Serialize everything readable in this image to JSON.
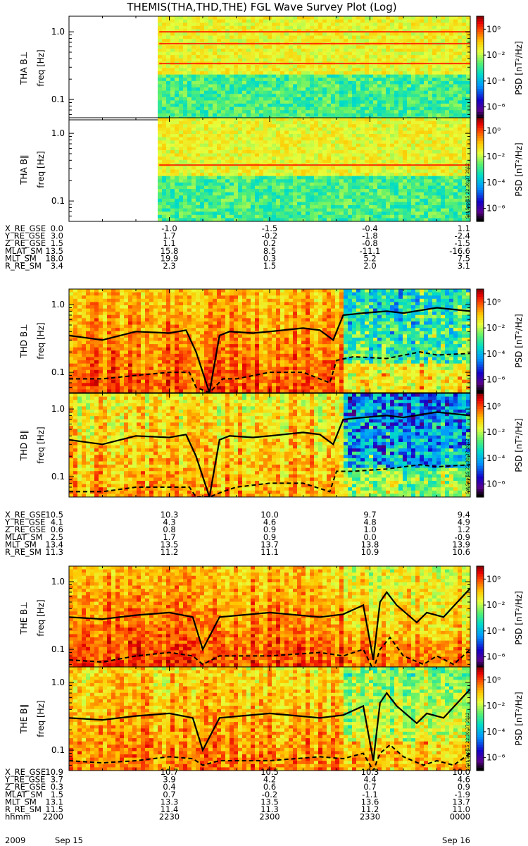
{
  "title": "THEMIS(THA,THD,THE) FGL Wave Survey Plot (Log)",
  "stamp": "Sat Sep 15 22:30:37 2012",
  "colors": {
    "upper_line": "#000000",
    "lower_line": "#000000",
    "harmonic": "#ff3000"
  },
  "chart_data": [
    {
      "type": "heatmap",
      "probe": "THA",
      "panel": "THA B⊥",
      "ylabel": "freq [Hz]",
      "yscale": "log",
      "ylim": [
        0.05,
        1.7
      ],
      "yticks": [
        "1.0",
        "0.1"
      ],
      "data_start_min": 27,
      "gap": "no data before 2215",
      "harmonic_lines_hz": [
        1.0,
        0.67,
        0.34
      ],
      "colorbar": {
        "label": "PSD [nT²/Hz]",
        "ticks": [
          "10⁰",
          "10⁻²",
          "10⁻⁴",
          "10⁻⁶"
        ],
        "range": [
          1e-07,
          10.0
        ]
      }
    },
    {
      "type": "heatmap",
      "probe": "THA",
      "panel": "THA B∥",
      "ylabel": "freq [Hz]",
      "yscale": "log",
      "ylim": [
        0.05,
        1.7
      ],
      "yticks": [
        "1.0",
        "0.1"
      ],
      "data_start_min": 27,
      "harmonic_lines_hz": [
        0.34
      ],
      "colorbar": {
        "label": "PSD [nT²/Hz]",
        "ticks": [
          "10⁰",
          "10⁻²",
          "10⁻⁴",
          "10⁻⁶"
        ],
        "range": [
          1e-07,
          10.0
        ]
      }
    },
    {
      "type": "heatmap",
      "probe": "THD",
      "panel": "THD B⊥",
      "ylabel": "freq [Hz]",
      "yscale": "log",
      "ylim": [
        0.05,
        1.7
      ],
      "yticks": [
        "1.0",
        "0.1"
      ],
      "upper_line": {
        "x_min": [
          0,
          10,
          20,
          30,
          35,
          38,
          42,
          45,
          48,
          55,
          60,
          70,
          75,
          79,
          82,
          88,
          95,
          100,
          110,
          120
        ],
        "y_hz": [
          0.35,
          0.3,
          0.4,
          0.38,
          0.42,
          0.2,
          0.05,
          0.35,
          0.4,
          0.38,
          0.4,
          0.45,
          0.42,
          0.3,
          0.7,
          0.75,
          0.8,
          0.75,
          0.9,
          0.8
        ]
      },
      "lower_line": {
        "x_min": [
          0,
          10,
          20,
          30,
          36,
          38,
          42,
          46,
          50,
          60,
          70,
          78,
          80,
          85,
          95,
          105,
          110,
          120
        ],
        "y_hz": [
          0.08,
          0.08,
          0.09,
          0.1,
          0.1,
          0.06,
          0.05,
          0.08,
          0.08,
          0.1,
          0.1,
          0.07,
          0.15,
          0.17,
          0.16,
          0.2,
          0.18,
          0.19
        ]
      },
      "colorbar": {
        "label": "PSD [nT²/Hz]",
        "ticks": [
          "10⁰",
          "10⁻²",
          "10⁻⁴",
          "10⁻⁶"
        ],
        "range": [
          1e-07,
          10.0
        ]
      }
    },
    {
      "type": "heatmap",
      "probe": "THD",
      "panel": "THD B∥",
      "ylabel": "freq [Hz]",
      "yscale": "log",
      "ylim": [
        0.05,
        1.7
      ],
      "yticks": [
        "1.0",
        "0.1"
      ],
      "upper_line": {
        "x_min": [
          0,
          10,
          20,
          30,
          35,
          38,
          42,
          45,
          48,
          55,
          60,
          70,
          75,
          79,
          82,
          88,
          95,
          100,
          110,
          120
        ],
        "y_hz": [
          0.35,
          0.3,
          0.4,
          0.38,
          0.42,
          0.2,
          0.05,
          0.35,
          0.4,
          0.38,
          0.4,
          0.45,
          0.42,
          0.3,
          0.7,
          0.75,
          0.8,
          0.75,
          0.9,
          0.8
        ]
      },
      "lower_line": {
        "x_min": [
          0,
          10,
          20,
          30,
          36,
          38,
          42,
          46,
          50,
          60,
          70,
          78,
          80,
          85,
          95,
          105,
          110,
          120
        ],
        "y_hz": [
          0.06,
          0.06,
          0.07,
          0.07,
          0.07,
          0.05,
          0.05,
          0.06,
          0.07,
          0.08,
          0.08,
          0.06,
          0.12,
          0.12,
          0.13,
          0.15,
          0.14,
          0.15
        ]
      },
      "colorbar": {
        "label": "PSD [nT²/Hz]",
        "ticks": [
          "10⁰",
          "10⁻²",
          "10⁻⁴",
          "10⁻⁶"
        ],
        "range": [
          1e-07,
          10.0
        ]
      }
    },
    {
      "type": "heatmap",
      "probe": "THE",
      "panel": "THE B⊥",
      "ylabel": "freq [Hz]",
      "yscale": "log",
      "ylim": [
        0.05,
        1.7
      ],
      "yticks": [
        "1.0",
        "0.1"
      ],
      "upper_line": {
        "x_min": [
          0,
          10,
          20,
          30,
          37,
          40,
          45,
          60,
          75,
          82,
          88,
          91,
          93,
          95,
          98,
          104,
          107,
          112,
          120
        ],
        "y_hz": [
          0.3,
          0.28,
          0.32,
          0.35,
          0.3,
          0.1,
          0.3,
          0.35,
          0.3,
          0.33,
          0.45,
          0.07,
          0.5,
          0.7,
          0.45,
          0.25,
          0.35,
          0.3,
          0.8
        ]
      },
      "lower_line": {
        "x_min": [
          0,
          10,
          20,
          30,
          37,
          40,
          45,
          60,
          75,
          82,
          88,
          91,
          93,
          96,
          100,
          106,
          110,
          115,
          120
        ],
        "y_hz": [
          0.07,
          0.065,
          0.08,
          0.09,
          0.08,
          0.06,
          0.08,
          0.08,
          0.09,
          0.08,
          0.1,
          0.05,
          0.1,
          0.15,
          0.08,
          0.06,
          0.08,
          0.06,
          0.1
        ]
      },
      "colorbar": {
        "label": "PSD [nT²/Hz]",
        "ticks": [
          "10⁰",
          "10⁻²",
          "10⁻⁴",
          "10⁻⁶"
        ],
        "range": [
          1e-07,
          10.0
        ]
      }
    },
    {
      "type": "heatmap",
      "probe": "THE",
      "panel": "THE B∥",
      "ylabel": "freq [Hz]",
      "yscale": "log",
      "ylim": [
        0.05,
        1.7
      ],
      "yticks": [
        "1.0",
        "0.1"
      ],
      "upper_line": {
        "x_min": [
          0,
          10,
          20,
          30,
          37,
          40,
          45,
          60,
          75,
          82,
          88,
          91,
          93,
          95,
          98,
          104,
          107,
          112,
          120
        ],
        "y_hz": [
          0.3,
          0.28,
          0.32,
          0.35,
          0.3,
          0.1,
          0.3,
          0.35,
          0.3,
          0.33,
          0.45,
          0.07,
          0.5,
          0.7,
          0.45,
          0.25,
          0.35,
          0.3,
          0.8
        ]
      },
      "lower_line": {
        "x_min": [
          0,
          10,
          20,
          30,
          37,
          40,
          45,
          60,
          75,
          82,
          88,
          91,
          93,
          96,
          100,
          106,
          110,
          115,
          120
        ],
        "y_hz": [
          0.07,
          0.065,
          0.07,
          0.08,
          0.075,
          0.06,
          0.07,
          0.07,
          0.08,
          0.075,
          0.09,
          0.05,
          0.09,
          0.12,
          0.08,
          0.06,
          0.07,
          0.06,
          0.09
        ]
      },
      "colorbar": {
        "label": "PSD [nT²/Hz]",
        "ticks": [
          "10⁰",
          "10⁻²",
          "10⁻⁴",
          "10⁻⁶"
        ],
        "range": [
          1e-07,
          10.0
        ]
      }
    }
  ],
  "ephemeris": [
    {
      "probe": "THA",
      "rows": [
        {
          "label": "X_RE_GSE",
          "values": [
            "0.0",
            "-1.0",
            "-1.5",
            "-0.4",
            "1.1"
          ]
        },
        {
          "label": "Y_RE_GSE",
          "values": [
            "3.0",
            "1.7",
            "-0.2",
            "-1.8",
            "-2.4"
          ]
        },
        {
          "label": "Z_RE_GSE",
          "values": [
            "1.5",
            "1.1",
            "0.2",
            "-0.8",
            "-1.5"
          ]
        },
        {
          "label": "MLAT_SM",
          "values": [
            "13.5",
            "15.8",
            "8.5",
            "-11.1",
            "-16.6"
          ]
        },
        {
          "label": "MLT_SM",
          "values": [
            "18.0",
            "19.9",
            "0.3",
            "5.2",
            "7.5"
          ]
        },
        {
          "label": "R_RE_SM",
          "values": [
            "3.4",
            "2.3",
            "1.5",
            "2.0",
            "3.1"
          ]
        }
      ]
    },
    {
      "probe": "THD",
      "rows": [
        {
          "label": "X_RE_GSE",
          "values": [
            "10.5",
            "10.3",
            "10.0",
            "9.7",
            "9.4"
          ]
        },
        {
          "label": "Y_RE_GSE",
          "values": [
            "4.1",
            "4.3",
            "4.6",
            "4.8",
            "4.9"
          ]
        },
        {
          "label": "Z_RE_GSE",
          "values": [
            "0.6",
            "0.8",
            "0.9",
            "1.0",
            "1.2"
          ]
        },
        {
          "label": "MLAT_SM",
          "values": [
            "2.5",
            "1.7",
            "0.9",
            "0.0",
            "-0.9"
          ]
        },
        {
          "label": "MLT_SM",
          "values": [
            "13.4",
            "13.5",
            "13.7",
            "13.8",
            "13.9"
          ]
        },
        {
          "label": "R_RE_SM",
          "values": [
            "11.3",
            "11.2",
            "11.1",
            "10.9",
            "10.6"
          ]
        }
      ]
    },
    {
      "probe": "THE",
      "rows": [
        {
          "label": "X_RE_GSE",
          "values": [
            "10.9",
            "10.7",
            "10.5",
            "10.3",
            "10.0"
          ]
        },
        {
          "label": "Y_RE_GSE",
          "values": [
            "3.7",
            "3.9",
            "4.2",
            "4.4",
            "4.6"
          ]
        },
        {
          "label": "Z_RE_GSE",
          "values": [
            "0.3",
            "0.4",
            "0.6",
            "0.7",
            "0.9"
          ]
        },
        {
          "label": "MLAT_SM",
          "values": [
            "1.5",
            "0.7",
            "-0.2",
            "-1.1",
            "-1.9"
          ]
        },
        {
          "label": "MLT_SM",
          "values": [
            "13.1",
            "13.3",
            "13.5",
            "13.6",
            "13.7"
          ]
        },
        {
          "label": "R_RE_SM",
          "values": [
            "11.5",
            "11.4",
            "11.3",
            "11.2",
            "11.0"
          ]
        },
        {
          "label": "hhmm",
          "values": [
            "2200",
            "2230",
            "2300",
            "2330",
            "0000"
          ]
        }
      ]
    }
  ],
  "date_labels": {
    "year": "2009",
    "start": "Sep 15",
    "end": "Sep 16"
  }
}
